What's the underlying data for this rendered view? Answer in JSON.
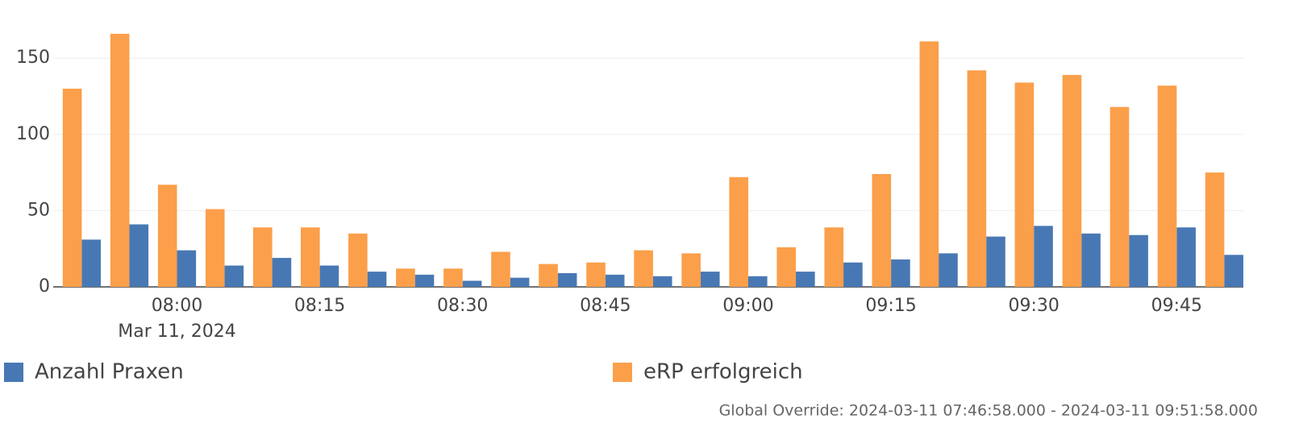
{
  "chart_data": {
    "type": "bar",
    "x": [
      "2024-03-11T07:50:00",
      "2024-03-11T07:55:00",
      "2024-03-11T08:00:00",
      "2024-03-11T08:05:00",
      "2024-03-11T08:10:00",
      "2024-03-11T08:15:00",
      "2024-03-11T08:20:00",
      "2024-03-11T08:25:00",
      "2024-03-11T08:30:00",
      "2024-03-11T08:35:00",
      "2024-03-11T08:40:00",
      "2024-03-11T08:45:00",
      "2024-03-11T08:50:00",
      "2024-03-11T08:55:00",
      "2024-03-11T09:00:00",
      "2024-03-11T09:05:00",
      "2024-03-11T09:10:00",
      "2024-03-11T09:15:00",
      "2024-03-11T09:20:00",
      "2024-03-11T09:25:00",
      "2024-03-11T09:30:00",
      "2024-03-11T09:35:00",
      "2024-03-11T09:40:00",
      "2024-03-11T09:45:00",
      "2024-03-11T09:50:00"
    ],
    "series": [
      {
        "name": "Anzahl Praxen",
        "color": "#4878b4",
        "values": [
          31,
          41,
          24,
          14,
          19,
          14,
          10,
          8,
          4,
          6,
          9,
          8,
          7,
          10,
          7,
          10,
          16,
          18,
          22,
          33,
          40,
          35,
          34,
          39,
          21
        ]
      },
      {
        "name": "eRP erfolgreich",
        "color": "#fb9f4a",
        "values": [
          130,
          166,
          67,
          51,
          39,
          39,
          35,
          12,
          12,
          23,
          15,
          16,
          24,
          22,
          72,
          26,
          39,
          74,
          161,
          142,
          134,
          139,
          118,
          132,
          75
        ]
      }
    ],
    "xlim": [
      "2024-03-11T07:47:00",
      "2024-03-11T09:52:00"
    ],
    "xticks": [
      {
        "value": "2024-03-11T08:00:00",
        "label": "08:00"
      },
      {
        "value": "2024-03-11T08:15:00",
        "label": "08:15"
      },
      {
        "value": "2024-03-11T08:30:00",
        "label": "08:30"
      },
      {
        "value": "2024-03-11T08:45:00",
        "label": "08:45"
      },
      {
        "value": "2024-03-11T09:00:00",
        "label": "09:00"
      },
      {
        "value": "2024-03-11T09:15:00",
        "label": "09:15"
      },
      {
        "value": "2024-03-11T09:30:00",
        "label": "09:30"
      },
      {
        "value": "2024-03-11T09:45:00",
        "label": "09:45"
      }
    ],
    "x_date_label": "Mar 11, 2024",
    "ylim": [
      0,
      176
    ],
    "yticks": [
      0,
      50,
      100,
      150
    ],
    "grid": true,
    "legend": "bottom",
    "footer": "Global Override: 2024-03-11 07:46:58.000 - 2024-03-11 09:51:58.000"
  }
}
